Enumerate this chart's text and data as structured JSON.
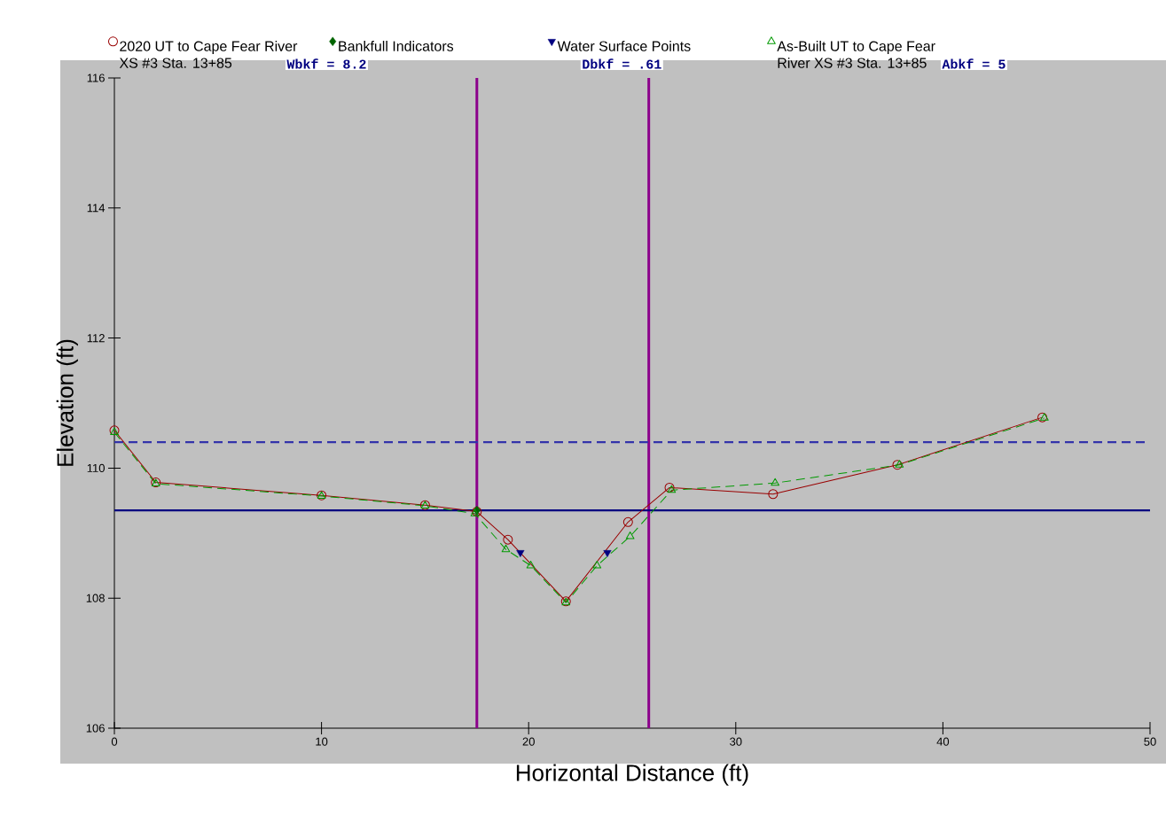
{
  "chart_data": {
    "type": "line",
    "xlabel": "Horizontal Distance (ft)",
    "ylabel": "Elevation (ft)",
    "xlim": [
      0,
      50
    ],
    "xticks": [
      0,
      10,
      20,
      30,
      40,
      50
    ],
    "ylim": [
      106,
      116
    ],
    "yticks": [
      106,
      108,
      110,
      112,
      114,
      116
    ],
    "legend": "top",
    "annotations": [
      "Wbkf = 8.2",
      "Dbkf = .61",
      "Abkf = 5"
    ],
    "series": [
      {
        "name": "2020 UT to Cape Fear River XS #3 Sta. 13+85",
        "color": "#990000",
        "marker": "circle",
        "line_style": "solid",
        "x": [
          0,
          2,
          10,
          15,
          17.5,
          19,
          21.8,
          24.8,
          26.8,
          31.8,
          37.8,
          44.8
        ],
        "values": [
          110.58,
          109.78,
          109.58,
          109.43,
          109.33,
          108.9,
          107.95,
          109.17,
          109.7,
          109.6,
          110.05,
          110.78
        ]
      },
      {
        "name": "Bankfull Indicators",
        "type": "scatter",
        "color": "#006400",
        "marker": "diamond",
        "x": [
          17.5
        ],
        "values": [
          109.35
        ]
      },
      {
        "name": "Water Surface Points",
        "type": "scatter",
        "color": "#000080",
        "marker": "triangle",
        "x": [
          19.6,
          23.8
        ],
        "values": [
          108.7,
          108.7
        ]
      },
      {
        "name": "As-Built UT to Cape Fear River XS #3 Sta. 13+85",
        "color": "#009900",
        "marker": "triangle",
        "line_style": "dashed",
        "x": [
          0,
          2,
          10,
          15,
          17.4,
          18.9,
          20.1,
          21.8,
          23.3,
          24.9,
          26.9,
          31.9,
          37.9,
          44.9
        ],
        "values": [
          110.55,
          109.76,
          109.57,
          109.42,
          109.3,
          108.75,
          108.5,
          107.93,
          108.5,
          108.95,
          109.66,
          109.77,
          110.05,
          110.77
        ]
      }
    ],
    "ref_lines": [
      {
        "axis": "x",
        "value": 17.5,
        "color": "#8b008b",
        "line_style": "solid"
      },
      {
        "axis": "x",
        "value": 25.8,
        "color": "#8b008b",
        "line_style": "solid"
      },
      {
        "axis": "y",
        "value": 109.35,
        "color": "#000080",
        "line_style": "solid"
      },
      {
        "axis": "y",
        "value": 110.4,
        "color": "#3333aa",
        "line_style": "dashed"
      }
    ]
  }
}
